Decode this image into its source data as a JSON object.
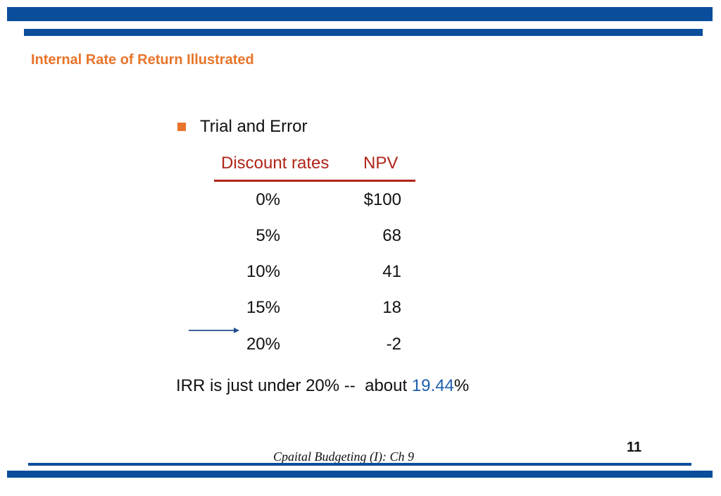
{
  "slide": {
    "title": "Internal Rate of Return Illustrated",
    "bullet": "Trial and Error",
    "table": {
      "headers": {
        "rate": "Discount rates",
        "npv": "NPV"
      },
      "rows": [
        {
          "rate": "0%",
          "npv": "$100"
        },
        {
          "rate": "5%",
          "npv": "68"
        },
        {
          "rate": "10%",
          "npv": "41"
        },
        {
          "rate": "15%",
          "npv": "18"
        },
        {
          "rate": "20%",
          "npv": "-2"
        }
      ]
    },
    "irr": {
      "prefix": "IRR is just under 20% --  about ",
      "value": "19.44",
      "suffix": "%"
    },
    "footer": "Cpaital Budgeting (I): Ch 9",
    "page_number": "11"
  },
  "colors": {
    "brand_blue": "#0a4d9b",
    "accent_orange": "#e8742a",
    "header_red": "#b02418",
    "highlight_blue": "#1f5fae"
  }
}
